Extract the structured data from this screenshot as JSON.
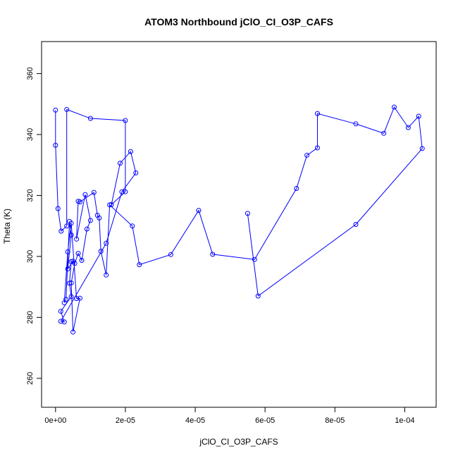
{
  "chart_data": {
    "type": "line",
    "title": "ATOM3 Northbound jClO_CI_O3P_CAFS",
    "xlabel": "jClO_CI_O3P_CAFS",
    "ylabel": "Theta (K)",
    "xlim": [
      -4e-06,
      0.000109
    ],
    "ylim": [
      250.5,
      370.5
    ],
    "x_ticks": [
      0,
      2e-05,
      4e-05,
      6e-05,
      8e-05,
      0.0001
    ],
    "x_tick_labels": [
      "0e+00",
      "2e-05",
      "4e-05",
      "6e-05",
      "8e-05",
      "1e-04"
    ],
    "y_ticks": [
      260,
      280,
      300,
      320,
      340,
      360
    ],
    "y_tick_labels": [
      "260",
      "280",
      "300",
      "320",
      "340",
      "360"
    ],
    "grid": false,
    "legend": "none",
    "series_color": "#0000ff",
    "series": [
      {
        "x": [
          0.0,
          0.0,
          7e-07,
          1.6e-06,
          3.2e-06,
          3.2e-06,
          1e-05,
          2e-05,
          2e-05,
          1.6e-05,
          1.85e-05,
          2.15e-05,
          2.3e-05,
          1.9e-05,
          1.45e-05,
          1.5e-06,
          2.5e-06,
          1.5e-06,
          4.5e-06,
          4e-06,
          4.5e-06,
          5e-06,
          3.5e-06,
          4.5e-06,
          4e-06,
          3e-06,
          2.5e-06,
          3.5e-06,
          4.5e-06,
          6e-06,
          7e-06,
          5e-06,
          4.5e-06,
          5.5e-06,
          6.5e-06,
          7.5e-06,
          9e-06,
          1e-05,
          8.5e-06,
          6e-06,
          6.5e-06,
          7e-06,
          1.1e-05,
          1.2e-05,
          1.25e-05,
          1.3e-05,
          1.45e-05,
          1.55e-05,
          2.2e-05,
          2.4e-05,
          3.3e-05,
          4.1e-05,
          4.5e-05,
          5.7e-05,
          6.9e-05,
          7.2e-05,
          7.5e-05,
          7.5e-05,
          8.6e-05,
          9.4e-05,
          9.7e-05,
          0.000101,
          0.000104,
          0.000105,
          8.6e-05,
          5.8e-05,
          5.5e-05
        ],
        "y": [
          348.0,
          336.5,
          315.7,
          308.3,
          310.0,
          348.2,
          345.3,
          344.6,
          321.2,
          317.0,
          330.6,
          334.4,
          327.4,
          321.2,
          304.3,
          278.7,
          278.5,
          282.0,
          286.8,
          291.2,
          298.3,
          298.4,
          295.9,
          307.0,
          311.5,
          285.9,
          284.8,
          301.5,
          310.9,
          286.2,
          286.3,
          275.2,
          291.3,
          297.7,
          301.0,
          298.7,
          309.0,
          311.8,
          320.3,
          305.7,
          318.1,
          317.9,
          321.0,
          313.5,
          312.6,
          301.7,
          293.9,
          316.9,
          310.0,
          297.3,
          300.6,
          315.1,
          300.7,
          299.0,
          322.3,
          333.2,
          335.6,
          346.9,
          343.5,
          340.4,
          349.0,
          342.3,
          346.0,
          335.4,
          310.5,
          287.0,
          314.1
        ]
      }
    ]
  }
}
